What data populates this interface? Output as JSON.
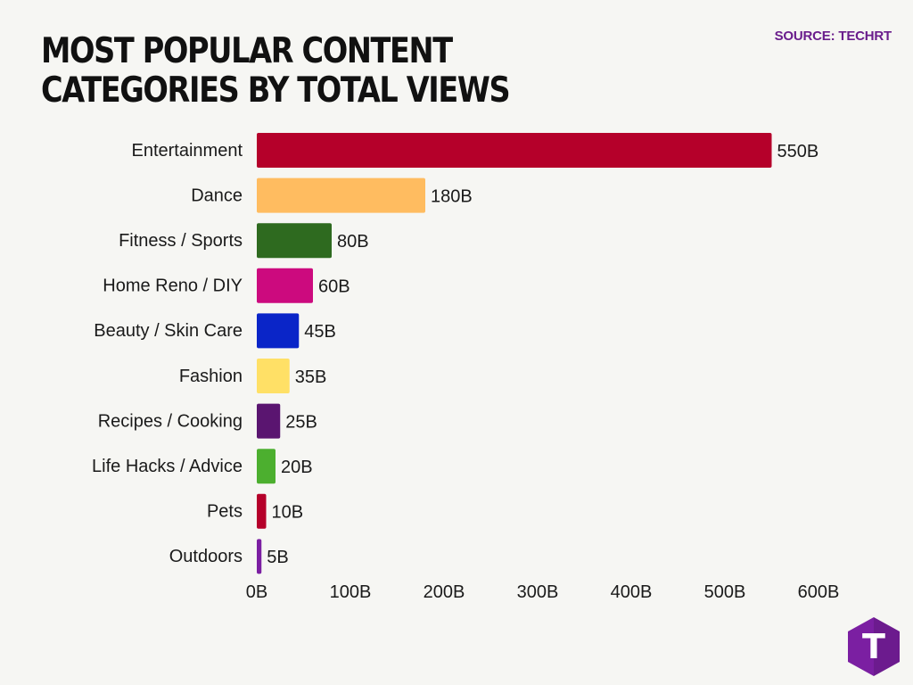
{
  "header": {
    "title": "MOST POPULAR CONTENT CATEGORIES BY TOTAL VIEWS",
    "source": "SOURCE: TECHRT"
  },
  "logo": {
    "icon": "techrt-logo-icon",
    "letter": "T",
    "color": "#7b1fa2"
  },
  "chart_data": {
    "type": "bar",
    "orientation": "horizontal",
    "title": "MOST POPULAR CONTENT CATEGORIES BY TOTAL VIEWS",
    "xlabel": "",
    "ylabel": "",
    "xlim": [
      0,
      600
    ],
    "grid": false,
    "legend": "none",
    "categories": [
      "Entertainment",
      "Dance",
      "Fitness / Sports",
      "Home Reno / DIY",
      "Beauty / Skin Care",
      "Fashion",
      "Recipes / Cooking",
      "Life Hacks / Advice",
      "Pets",
      "Outdoors"
    ],
    "values": [
      550,
      180,
      80,
      60,
      45,
      35,
      25,
      20,
      10,
      5
    ],
    "value_labels": [
      "550B",
      "180B",
      "80B",
      "60B",
      "45B",
      "35B",
      "25B",
      "20B",
      "10B",
      "5B"
    ],
    "colors": [
      "#b5002a",
      "#ffbc60",
      "#2e6a1f",
      "#cc0a7e",
      "#0a25c8",
      "#ffe066",
      "#5a1570",
      "#4caf2f",
      "#b5002a",
      "#7b1fa2"
    ],
    "x_ticks": [
      0,
      100,
      200,
      300,
      400,
      500,
      600
    ],
    "x_tick_labels": [
      "0B",
      "100B",
      "200B",
      "300B",
      "400B",
      "500B",
      "600B"
    ]
  }
}
